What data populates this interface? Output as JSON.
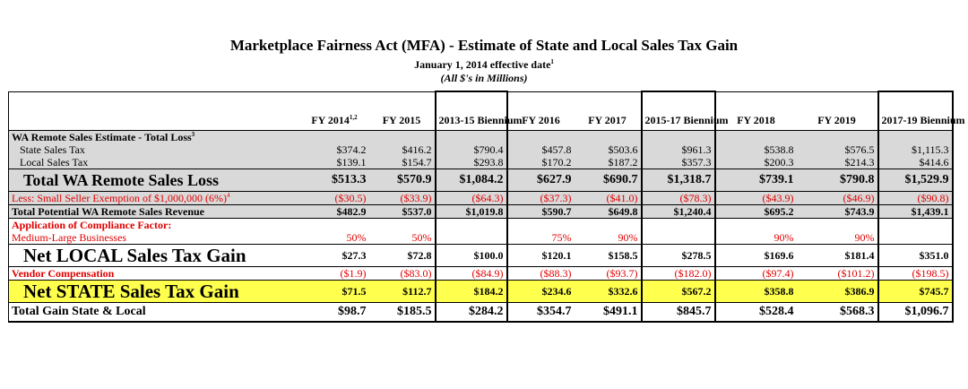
{
  "title": "Marketplace Fairness Act (MFA) - Estimate of State and Local Sales Tax Gain",
  "subtitle": "January 1, 2014 effective date",
  "subtitle_sup": "1",
  "subtitle2": "(All $'s in Millions)",
  "columns": [
    {
      "label": "FY 2014",
      "sup": "1,2"
    },
    {
      "label": "FY 2015",
      "sup": ""
    },
    {
      "label": "2013-15 Biennium",
      "sup": ""
    },
    {
      "label": "FY 2016",
      "sup": ""
    },
    {
      "label": "FY 2017",
      "sup": ""
    },
    {
      "label": "2015-17 Biennium",
      "sup": ""
    },
    {
      "label": "FY 2018",
      "sup": ""
    },
    {
      "label": "FY 2019",
      "sup": ""
    },
    {
      "label": "2017-19 Biennium",
      "sup": ""
    }
  ],
  "rows": {
    "remote_estimate": {
      "label": "WA Remote Sales Estimate - Total Loss",
      "sup": "3"
    },
    "state_sales_tax": {
      "label": "State Sales Tax",
      "values": [
        "$374.2",
        "$416.2",
        "$790.4",
        "$457.8",
        "$503.6",
        "$961.3",
        "$538.8",
        "$576.5",
        "$1,115.3"
      ]
    },
    "local_sales_tax": {
      "label": "Local Sales Tax",
      "values": [
        "$139.1",
        "$154.7",
        "$293.8",
        "$170.2",
        "$187.2",
        "$357.3",
        "$200.3",
        "$214.3",
        "$414.6"
      ]
    },
    "total_remote_loss": {
      "label": "Total WA Remote Sales Loss",
      "values": [
        "$513.3",
        "$570.9",
        "$1,084.2",
        "$627.9",
        "$690.7",
        "$1,318.7",
        "$739.1",
        "$790.8",
        "$1,529.9"
      ]
    },
    "small_seller": {
      "label": "Less: Small Seller Exemption of $1,000,000 (6%)",
      "sup": "4",
      "values": [
        "($30.5)",
        "($33.9)",
        "($64.3)",
        "($37.3)",
        "($41.0)",
        "($78.3)",
        "($43.9)",
        "($46.9)",
        "($90.8)"
      ]
    },
    "potential_revenue": {
      "label": "Total Potential WA Remote Sales Revenue",
      "values": [
        "$482.9",
        "$537.0",
        "$1,019.8",
        "$590.7",
        "$649.8",
        "$1,240.4",
        "$695.2",
        "$743.9",
        "$1,439.1"
      ]
    },
    "compliance_factor": {
      "label": "Application of Compliance Factor:"
    },
    "medium_large": {
      "label": "Medium-Large Businesses",
      "values": [
        "50%",
        "50%",
        "",
        "75%",
        "90%",
        "",
        "90%",
        "90%",
        ""
      ]
    },
    "net_local": {
      "label": "Net LOCAL Sales Tax Gain",
      "values": [
        "$27.3",
        "$72.8",
        "$100.0",
        "$120.1",
        "$158.5",
        "$278.5",
        "$169.6",
        "$181.4",
        "$351.0"
      ]
    },
    "vendor_comp": {
      "label": "Vendor Compensation",
      "values": [
        "($1.9)",
        "($83.0)",
        "($84.9)",
        "($88.3)",
        "($93.7)",
        "($182.0)",
        "($97.4)",
        "($101.2)",
        "($198.5)"
      ]
    },
    "net_state": {
      "label": "Net STATE Sales Tax Gain",
      "values": [
        "$71.5",
        "$112.7",
        "$184.2",
        "$234.6",
        "$332.6",
        "$567.2",
        "$358.8",
        "$386.9",
        "$745.7"
      ]
    },
    "total_gain": {
      "label": "Total Gain State & Local",
      "values": [
        "$98.7",
        "$185.5",
        "$284.2",
        "$354.7",
        "$491.1",
        "$845.7",
        "$528.4",
        "$568.3",
        "$1,096.7"
      ]
    }
  },
  "colors": {
    "red": "#e00000",
    "grey_band": "#d9d9d9",
    "yellow_band": "#ffff4d"
  }
}
